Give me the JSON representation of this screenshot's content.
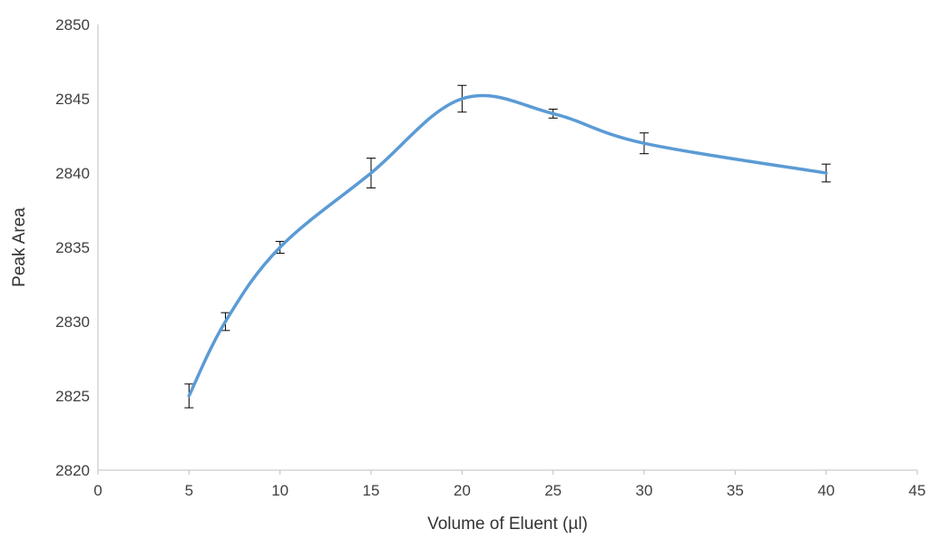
{
  "chart_data": {
    "type": "line",
    "title": "",
    "xlabel": "Volume of Eluent (µl)",
    "ylabel": "Peak Area",
    "xlim": [
      0,
      45
    ],
    "ylim": [
      2820,
      2850
    ],
    "x_ticks": [
      0,
      5,
      10,
      15,
      20,
      25,
      30,
      35,
      40,
      45
    ],
    "y_ticks": [
      2820,
      2825,
      2830,
      2835,
      2840,
      2845,
      2850
    ],
    "grid": false,
    "legend": "none",
    "line_style": "smoothed",
    "series": [
      {
        "color": "#5B9BD5",
        "x": [
          5,
          7,
          10,
          15,
          20,
          25,
          30,
          40
        ],
        "y": [
          2825,
          2830,
          2835,
          2840,
          2845,
          2844,
          2842,
          2840
        ],
        "error": [
          0.8,
          0.6,
          0.4,
          1.0,
          0.9,
          0.3,
          0.7,
          0.6
        ]
      }
    ]
  }
}
